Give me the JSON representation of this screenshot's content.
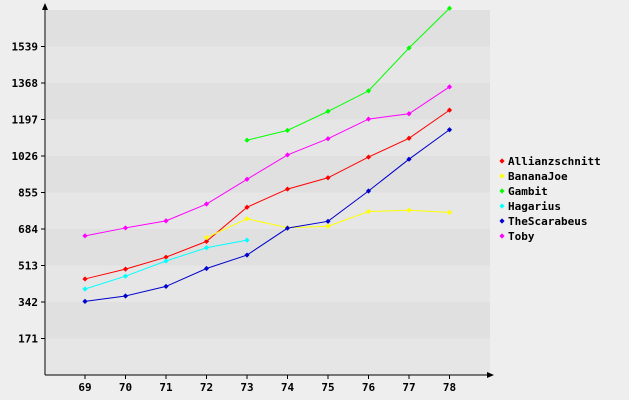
{
  "chart_data": {
    "type": "line",
    "title": "",
    "xlabel": "",
    "ylabel": "",
    "x": [
      69,
      70,
      71,
      72,
      73,
      74,
      75,
      76,
      77,
      78
    ],
    "x_tick_labels": [
      "69",
      "70",
      "71",
      "72",
      "73",
      "74",
      "75",
      "76",
      "77",
      "78"
    ],
    "y_ticks": [
      171,
      342,
      513,
      684,
      855,
      1026,
      1197,
      1368,
      1539
    ],
    "y_tick_labels": [
      "171",
      "342",
      "513",
      "684",
      "855",
      "1026",
      "1197",
      "1368",
      "1539"
    ],
    "ylim": [
      0,
      1710
    ],
    "grid": "horizontal bands",
    "legend_position": "right",
    "series": [
      {
        "name": "Allianzschnitt",
        "color": "#ff0000",
        "values": [
          450,
          496,
          552,
          626,
          786,
          871,
          924,
          1021,
          1109,
          1241
        ]
      },
      {
        "name": "BananaJoe",
        "color": "#ffff00",
        "values": [
          null,
          null,
          null,
          644,
          732,
          690,
          697,
          766,
          772,
          762
        ]
      },
      {
        "name": "Gambit",
        "color": "#00ff00",
        "values": [
          null,
          null,
          null,
          null,
          1100,
          1146,
          1235,
          1331,
          1532,
          1718
        ]
      },
      {
        "name": "Hagarius",
        "color": "#00ffff",
        "values": [
          403,
          463,
          534,
          596,
          632,
          null,
          null,
          null,
          null,
          null
        ]
      },
      {
        "name": "TheScarabeus",
        "color": "#0000cc",
        "values": [
          345,
          370,
          415,
          499,
          562,
          688,
          720,
          862,
          1011,
          1149
        ]
      },
      {
        "name": "Toby",
        "color": "#ff00ff",
        "values": [
          652,
          689,
          722,
          801,
          917,
          1031,
          1107,
          1199,
          1224,
          1350
        ]
      }
    ]
  }
}
